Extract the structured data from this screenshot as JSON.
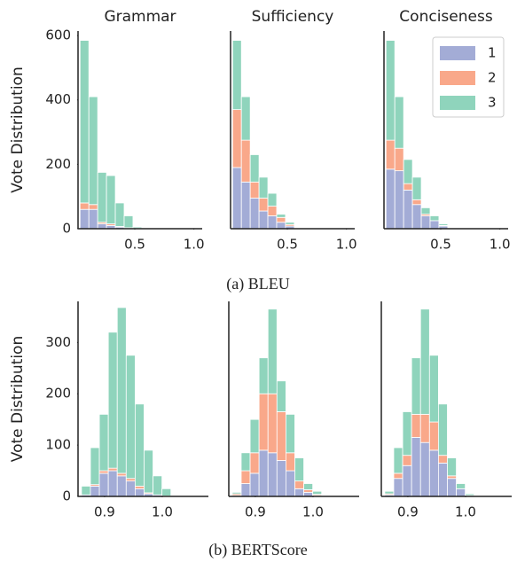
{
  "captions": [
    "(a) BLEU",
    "(b) BERTScore"
  ],
  "chart_data": [
    {
      "type": "histogram",
      "title": "Grammar",
      "y_label": "Vote Distribution",
      "bins": [
        0.037,
        0.1116,
        0.1862,
        0.2608,
        0.3354,
        0.41,
        0.4846,
        0.5592,
        0.6338,
        0.7084,
        0.783,
        0.8576,
        0.9322,
        1.0068
      ],
      "series": [
        {
          "name": "1",
          "color": "#a3acd6",
          "values": [
            60,
            60,
            15,
            10,
            5,
            3,
            1,
            0,
            0,
            0,
            0,
            0,
            0
          ]
        },
        {
          "name": "2",
          "color": "#f9a88a",
          "values": [
            20,
            15,
            5,
            5,
            2,
            0,
            0,
            0,
            0,
            0,
            0,
            0,
            0
          ]
        },
        {
          "name": "3",
          "color": "#8fd4bc",
          "values": [
            505,
            335,
            155,
            150,
            73,
            37,
            4,
            0,
            2,
            0,
            0,
            0,
            0
          ]
        }
      ],
      "xlim": [
        0.02,
        1.07
      ],
      "ylim": [
        0,
        614
      ],
      "xticks": [
        0.5,
        {
          "value": 1,
          "label": "1.0"
        }
      ],
      "yticks": [
        0,
        200,
        400,
        600
      ]
    },
    {
      "type": "histogram",
      "title": "Sufficiency",
      "bins": [
        0.037,
        0.1116,
        0.1862,
        0.2608,
        0.3354,
        0.41,
        0.4846,
        0.5592,
        0.6338,
        0.7084,
        0.783,
        0.8576,
        0.9322,
        1.0068
      ],
      "series": [
        {
          "name": "1",
          "color": "#a3acd6",
          "values": [
            190,
            145,
            95,
            55,
            40,
            20,
            8,
            2,
            0,
            0,
            0,
            0,
            0
          ]
        },
        {
          "name": "2",
          "color": "#f9a88a",
          "values": [
            180,
            130,
            50,
            40,
            30,
            15,
            5,
            1,
            0,
            0,
            0,
            0,
            0
          ]
        },
        {
          "name": "3",
          "color": "#8fd4bc",
          "values": [
            215,
            135,
            85,
            65,
            40,
            10,
            7,
            2,
            0,
            0,
            0,
            0,
            2
          ]
        }
      ],
      "xlim": [
        0.02,
        1.07
      ],
      "ylim": [
        0,
        614
      ],
      "xticks": [
        0.5,
        {
          "value": 1,
          "label": "1.0"
        }
      ]
    },
    {
      "type": "histogram",
      "title": "Conciseness",
      "legend": "upper right",
      "bins": [
        0.037,
        0.1116,
        0.1862,
        0.2608,
        0.3354,
        0.41,
        0.4846,
        0.5592,
        0.6338,
        0.7084,
        0.783,
        0.8576,
        0.9322,
        1.0068
      ],
      "series": [
        {
          "name": "1",
          "color": "#a3acd6",
          "values": [
            185,
            180,
            120,
            75,
            40,
            25,
            8,
            0,
            0,
            0,
            0,
            0,
            0
          ]
        },
        {
          "name": "2",
          "color": "#f9a88a",
          "values": [
            90,
            70,
            20,
            15,
            5,
            0,
            2,
            0,
            0,
            0,
            0,
            0,
            0
          ]
        },
        {
          "name": "3",
          "color": "#8fd4bc",
          "values": [
            310,
            160,
            75,
            70,
            20,
            15,
            5,
            0,
            0,
            0,
            0,
            0,
            0
          ]
        }
      ],
      "xlim": [
        0.02,
        1.07
      ],
      "ylim": [
        0,
        614
      ],
      "xticks": [
        0.5,
        {
          "value": 1,
          "label": "1.0"
        }
      ]
    },
    {
      "type": "histogram",
      "y_label": "Vote Distribution",
      "bins": [
        0.86,
        0.8755,
        0.891,
        0.9065,
        0.922,
        0.9375,
        0.953,
        0.9685,
        0.984,
        0.9995,
        1.015
      ],
      "series": [
        {
          "name": "1",
          "color": "#a3acd6",
          "values": [
            3,
            20,
            45,
            50,
            40,
            30,
            15,
            5,
            3,
            1
          ]
        },
        {
          "name": "2",
          "color": "#f9a88a",
          "values": [
            0,
            3,
            5,
            5,
            5,
            5,
            5,
            2,
            0,
            0
          ]
        },
        {
          "name": "3",
          "color": "#8fd4bc",
          "values": [
            17,
            72,
            110,
            265,
            323,
            240,
            160,
            83,
            37,
            14
          ]
        }
      ],
      "xlim": [
        0.854,
        1.08
      ],
      "ylim": [
        0,
        380
      ],
      "xticks": [
        0.9,
        {
          "value": 1,
          "label": "1.0"
        }
      ],
      "yticks": [
        0,
        100,
        200,
        300
      ]
    },
    {
      "type": "histogram",
      "bins": [
        0.86,
        0.8755,
        0.891,
        0.9065,
        0.922,
        0.9375,
        0.953,
        0.9685,
        0.984,
        0.9995,
        1.015
      ],
      "series": [
        {
          "name": "1",
          "color": "#a3acd6",
          "values": [
            2,
            25,
            45,
            90,
            85,
            70,
            50,
            15,
            8,
            2
          ]
        },
        {
          "name": "2",
          "color": "#f9a88a",
          "values": [
            3,
            25,
            40,
            110,
            115,
            95,
            35,
            15,
            5,
            2
          ]
        },
        {
          "name": "3",
          "color": "#8fd4bc",
          "values": [
            3,
            35,
            65,
            70,
            165,
            60,
            75,
            45,
            12,
            6
          ]
        }
      ],
      "xlim": [
        0.854,
        1.08
      ],
      "ylim": [
        0,
        380
      ],
      "xticks": [
        0.9,
        {
          "value": 1,
          "label": "1.0"
        }
      ]
    },
    {
      "type": "histogram",
      "bins": [
        0.86,
        0.8755,
        0.891,
        0.9065,
        0.922,
        0.9375,
        0.953,
        0.9685,
        0.984,
        0.9995,
        1.015
      ],
      "series": [
        {
          "name": "1",
          "color": "#a3acd6",
          "values": [
            3,
            35,
            60,
            115,
            105,
            90,
            65,
            35,
            15,
            2
          ]
        },
        {
          "name": "2",
          "color": "#f9a88a",
          "values": [
            2,
            10,
            20,
            45,
            55,
            55,
            15,
            5,
            0,
            0
          ]
        },
        {
          "name": "3",
          "color": "#8fd4bc",
          "values": [
            5,
            50,
            85,
            110,
            205,
            130,
            100,
            35,
            10,
            3
          ]
        }
      ],
      "xlim": [
        0.854,
        1.08
      ],
      "ylim": [
        0,
        380
      ],
      "xticks": [
        0.9,
        {
          "value": 1,
          "label": "1.0"
        }
      ]
    }
  ]
}
